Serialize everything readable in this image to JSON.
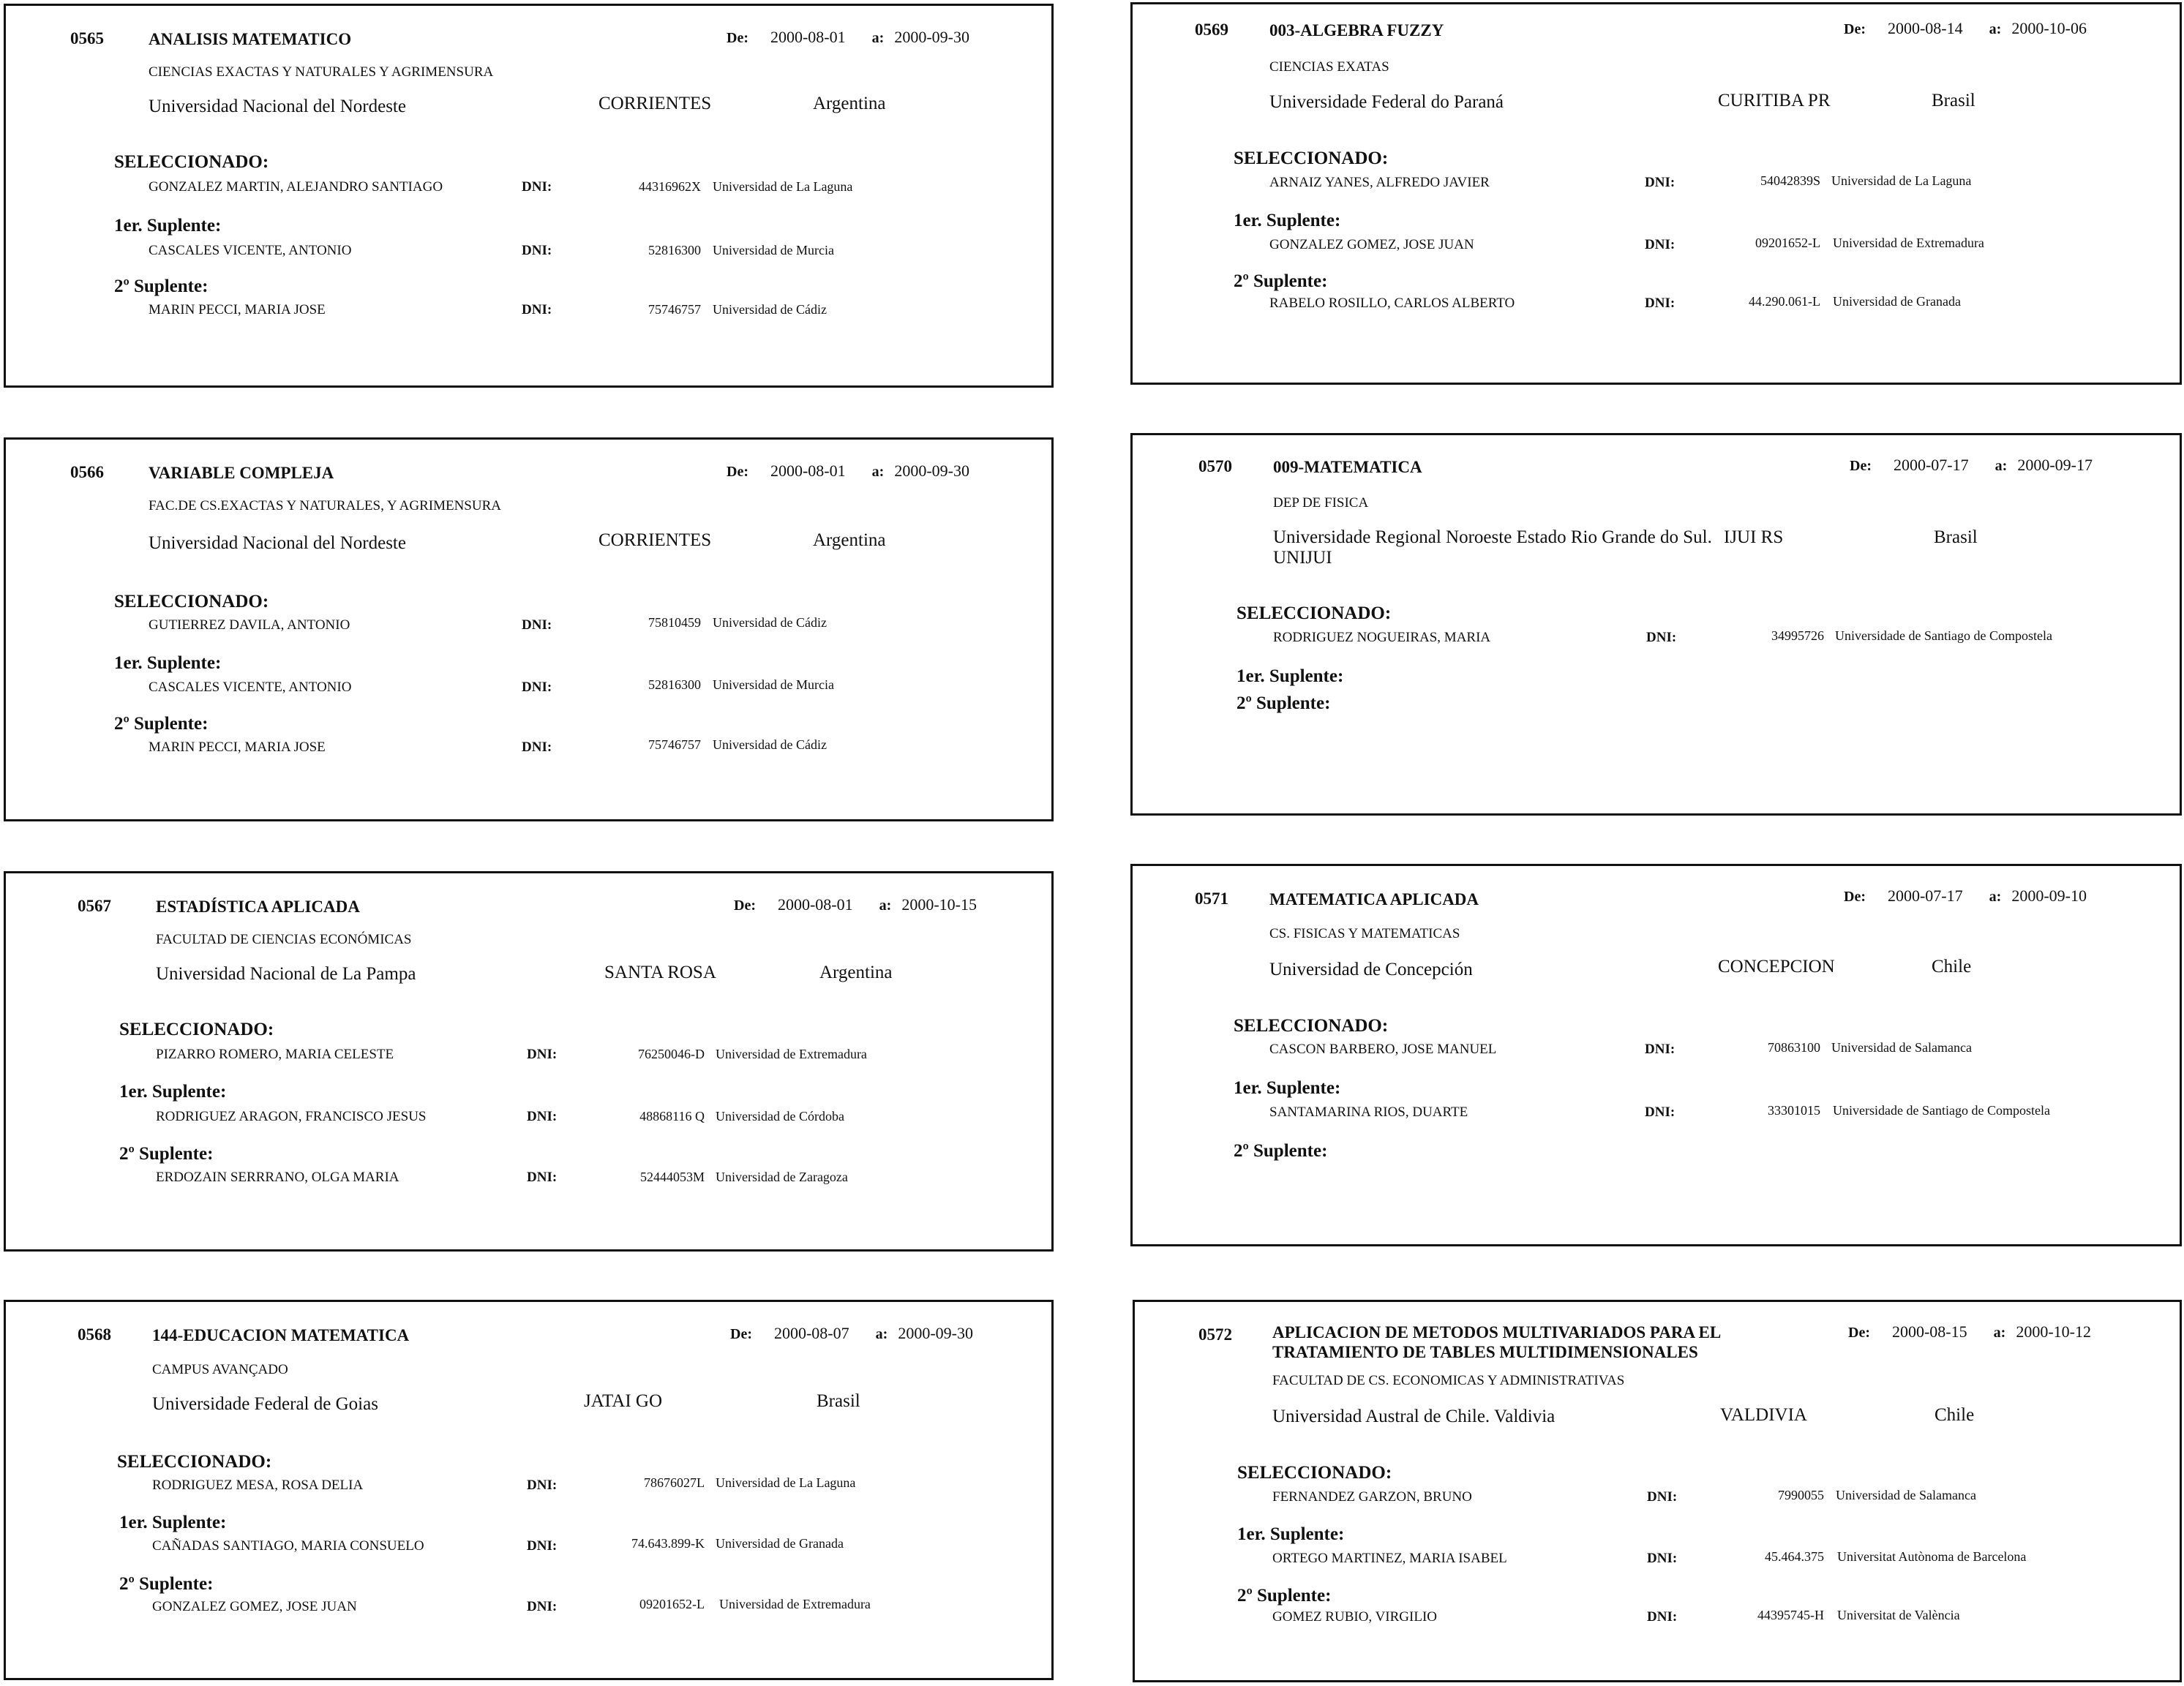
{
  "labels": {
    "de": "De:",
    "a": "a:",
    "selected": "SELECCIONADO:",
    "first_sub": "1er. Suplente:",
    "second_sub": "2º Suplente:",
    "dni": "DNI:"
  },
  "cards": [
    {
      "num": "0565",
      "title": "ANALISIS MATEMATICO",
      "from": "2000-08-01",
      "to": "2000-09-30",
      "faculty": "CIENCIAS EXACTAS Y NATURALES Y AGRIMENSURA",
      "university": "Universidad Nacional del Nordeste",
      "city": "CORRIENTES",
      "country": "Argentina",
      "selected": {
        "name": "GONZALEZ MARTIN, ALEJANDRO SANTIAGO",
        "dni": "44316962X",
        "univ": "Universidad de La Laguna"
      },
      "sub1": {
        "name": "CASCALES VICENTE, ANTONIO",
        "dni": "52816300",
        "univ": "Universidad de Murcia"
      },
      "sub2": {
        "name": "MARIN PECCI, MARIA JOSE",
        "dni": "75746757",
        "univ": "Universidad de Cádiz"
      }
    },
    {
      "num": "0566",
      "title": "VARIABLE COMPLEJA",
      "from": "2000-08-01",
      "to": "2000-09-30",
      "faculty": "FAC.DE CS.EXACTAS Y NATURALES, Y AGRIMENSURA",
      "university": "Universidad Nacional del Nordeste",
      "city": "CORRIENTES",
      "country": "Argentina",
      "selected": {
        "name": "GUTIERREZ DAVILA, ANTONIO",
        "dni": "75810459",
        "univ": "Universidad de Cádiz"
      },
      "sub1": {
        "name": "CASCALES VICENTE, ANTONIO",
        "dni": "52816300",
        "univ": "Universidad de Murcia"
      },
      "sub2": {
        "name": "MARIN PECCI, MARIA JOSE",
        "dni": "75746757",
        "univ": "Universidad de Cádiz"
      }
    },
    {
      "num": "0567",
      "title": "ESTADÍSTICA APLICADA",
      "from": "2000-08-01",
      "to": "2000-10-15",
      "faculty": "FACULTAD DE CIENCIAS ECONÓMICAS",
      "university": "Universidad Nacional de La Pampa",
      "city": "SANTA ROSA",
      "country": "Argentina",
      "selected": {
        "name": "PIZARRO ROMERO, MARIA CELESTE",
        "dni": "76250046-D",
        "univ": "Universidad de Extremadura"
      },
      "sub1": {
        "name": "RODRIGUEZ ARAGON, FRANCISCO JESUS",
        "dni": "48868116 Q",
        "univ": "Universidad de Córdoba"
      },
      "sub2": {
        "name": "ERDOZAIN SERRRANO, OLGA MARIA",
        "dni": "52444053M",
        "univ": "Universidad de Zaragoza"
      }
    },
    {
      "num": "0568",
      "title": "144-EDUCACION MATEMATICA",
      "from": "2000-08-07",
      "to": "2000-09-30",
      "faculty": "CAMPUS AVANÇADO",
      "university": "Universidade Federal de Goias",
      "city": "JATAI GO",
      "country": "Brasil",
      "selected": {
        "name": "RODRIGUEZ MESA, ROSA DELIA",
        "dni": "78676027L",
        "univ": "Universidad de La Laguna"
      },
      "sub1": {
        "name": "CAÑADAS SANTIAGO, MARIA CONSUELO",
        "dni": "74.643.899-K",
        "univ": "Universidad de Granada"
      },
      "sub2": {
        "name": "GONZALEZ GOMEZ, JOSE JUAN",
        "dni": "09201652-L",
        "univ": "Universidad de Extremadura"
      }
    },
    {
      "num": "0569",
      "title": "003-ALGEBRA FUZZY",
      "from": "2000-08-14",
      "to": "2000-10-06",
      "faculty": "CIENCIAS EXATAS",
      "university": "Universidade Federal do Paraná",
      "city": "CURITIBA PR",
      "country": "Brasil",
      "selected": {
        "name": "ARNAIZ YANES, ALFREDO JAVIER",
        "dni": "54042839S",
        "univ": "Universidad de La Laguna"
      },
      "sub1": {
        "name": "GONZALEZ GOMEZ, JOSE JUAN",
        "dni": "09201652-L",
        "univ": "Universidad de Extremadura"
      },
      "sub2": {
        "name": "RABELO ROSILLO, CARLOS ALBERTO",
        "dni": "44.290.061-L",
        "univ": "Universidad de Granada"
      }
    },
    {
      "num": "0570",
      "title": "009-MATEMATICA",
      "from": "2000-07-17",
      "to": "2000-09-17",
      "faculty": "DEP DE FISICA",
      "university": "Universidade Regional Noroeste Estado Rio Grande do Sul. UNIJUI",
      "city": "IJUI RS",
      "country": "Brasil",
      "selected": {
        "name": "RODRIGUEZ NOGUEIRAS, MARIA",
        "dni": "34995726",
        "univ": "Universidade de Santiago de Compostela"
      },
      "sub1": null,
      "sub2": null
    },
    {
      "num": "0571",
      "title": "MATEMATICA APLICADA",
      "from": "2000-07-17",
      "to": "2000-09-10",
      "faculty": "CS. FISICAS Y MATEMATICAS",
      "university": "Universidad de Concepción",
      "city": "CONCEPCION",
      "country": "Chile",
      "selected": {
        "name": "CASCON BARBERO, JOSE MANUEL",
        "dni": "70863100",
        "univ": "Universidad de Salamanca"
      },
      "sub1": {
        "name": "SANTAMARINA RIOS, DUARTE",
        "dni": "33301015",
        "univ": "Universidade de Santiago de Compostela"
      },
      "sub2": null
    },
    {
      "num": "0572",
      "title": "APLICACION DE METODOS MULTIVARIADOS PARA EL TRATAMIENTO DE TABLES MULTIDIMENSIONALES",
      "from": "2000-08-15",
      "to": "2000-10-12",
      "faculty": "FACULTAD DE CS. ECONOMICAS Y ADMINISTRATIVAS",
      "university": "Universidad Austral de Chile. Valdivia",
      "city": "VALDIVIA",
      "country": "Chile",
      "selected": {
        "name": "FERNANDEZ GARZON, BRUNO",
        "dni": "7990055",
        "univ": "Universidad de Salamanca"
      },
      "sub1": {
        "name": "ORTEGO MARTINEZ, MARIA ISABEL",
        "dni": "45.464.375",
        "univ": "Universitat Autònoma de Barcelona"
      },
      "sub2": {
        "name": "GOMEZ RUBIO, VIRGILIO",
        "dni": "44395745-H",
        "univ": "Universitat de València"
      }
    }
  ]
}
